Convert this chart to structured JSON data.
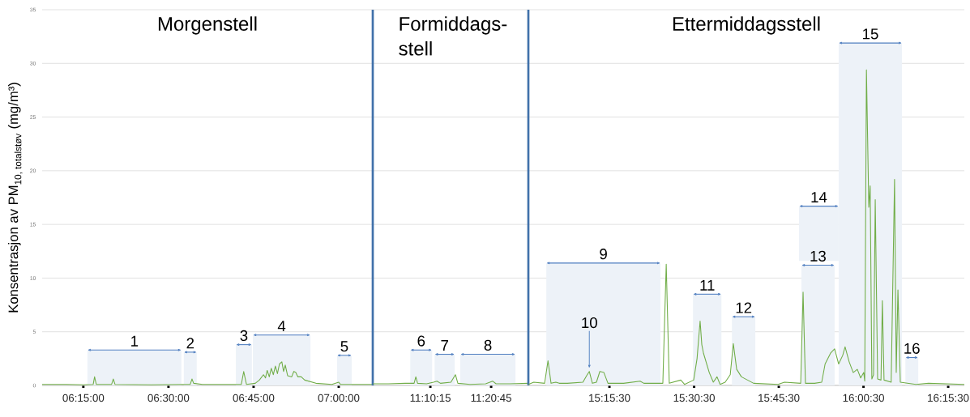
{
  "chart_data": [
    {
      "type": "line",
      "title": "Morgenstell",
      "ylabel": "\\text{Konsentrasjon av PM}_{\\text{10, totalstøv}}\\text{ (mg/m³)}",
      "grid": "y",
      "xlim": [
        6.129,
        7.1
      ],
      "ylim": [
        0,
        35
      ],
      "yticks": [
        0,
        5,
        10,
        15,
        20,
        25,
        30,
        35
      ],
      "xticks": [
        {
          "value": 6.25,
          "label": "06:15:00"
        },
        {
          "value": 6.5,
          "label": "06:30:00"
        },
        {
          "value": 6.75,
          "label": "06:45:00"
        },
        {
          "value": 7.0,
          "label": "07:00:00"
        }
      ],
      "series": [
        {
          "color": "#70ad47",
          "x": [
            6.129,
            6.2,
            6.25,
            6.279,
            6.283,
            6.288,
            6.333,
            6.338,
            6.343,
            6.45,
            6.54,
            6.564,
            6.569,
            6.574,
            6.6,
            6.714,
            6.721,
            6.729,
            6.755,
            6.767,
            6.779,
            6.785,
            6.79,
            6.796,
            6.802,
            6.808,
            6.814,
            6.82,
            6.826,
            6.833,
            6.838,
            6.843,
            6.85,
            6.862,
            6.868,
            6.874,
            6.88,
            6.89,
            6.9,
            6.933,
            6.98,
            7.0,
            7.005,
            7.05,
            7.1
          ],
          "values": [
            0.1,
            0.1,
            0.05,
            0.1,
            0.8,
            0.1,
            0.1,
            0.6,
            0.1,
            0.05,
            0.1,
            0.1,
            0.6,
            0.2,
            0.1,
            0.1,
            1.3,
            0.1,
            0.2,
            0.5,
            1.0,
            0.7,
            1.4,
            0.8,
            1.6,
            1.0,
            1.8,
            1.1,
            2.0,
            2.2,
            1.3,
            1.9,
            0.9,
            0.8,
            1.3,
            1.2,
            0.8,
            0.8,
            0.5,
            0.2,
            0.1,
            0.3,
            0.1,
            0.1,
            0.1
          ]
        }
      ],
      "bands": [
        {
          "axis": "x",
          "from": 6.262,
          "to": 6.538,
          "label": "1",
          "color": "#edf2f8"
        },
        {
          "axis": "x",
          "from": 6.545,
          "to": 6.583,
          "label": "2",
          "color": "#edf2f8"
        },
        {
          "axis": "x",
          "from": 6.698,
          "to": 6.745,
          "label": "3",
          "color": "#edf2f8"
        },
        {
          "axis": "x",
          "from": 6.748,
          "to": 6.917,
          "label": "4",
          "color": "#edf2f8"
        },
        {
          "axis": "x",
          "from": 6.995,
          "to": 7.038,
          "label": "5",
          "color": "#edf2f8"
        }
      ]
    },
    {
      "type": "line",
      "title": "Formiddags- stell",
      "grid": "y",
      "tick_labels": "x",
      "xlim": [
        11.005,
        11.453
      ],
      "ylim": [
        0,
        35
      ],
      "yticks": [
        0,
        5,
        10,
        15,
        20,
        25,
        30,
        35
      ],
      "xticks": [
        {
          "value": 11.170833,
          "label": "11:10:15"
        },
        {
          "value": 11.345833,
          "label": "11:20:45"
        }
      ],
      "series": [
        {
          "color": "#70ad47",
          "x": [
            11.005,
            11.05,
            11.098,
            11.124,
            11.129,
            11.134,
            11.16,
            11.18,
            11.19,
            11.2,
            11.23,
            11.243,
            11.25,
            11.285,
            11.33,
            11.35,
            11.36,
            11.4,
            11.453
          ],
          "values": [
            0.15,
            0.15,
            0.2,
            0.2,
            0.8,
            0.2,
            0.15,
            0.3,
            0.4,
            0.2,
            0.3,
            1.0,
            0.2,
            0.1,
            0.15,
            0.4,
            0.15,
            0.15,
            0.2
          ]
        }
      ],
      "bands": [
        {
          "axis": "x",
          "from": 11.113,
          "to": 11.176,
          "label": "6",
          "color": "#edf2f8"
        },
        {
          "axis": "x",
          "from": 11.183,
          "to": 11.241,
          "label": "7",
          "color": "#edf2f8"
        },
        {
          "axis": "x",
          "from": 11.257,
          "to": 11.416,
          "label": "8",
          "color": "#edf2f8"
        }
      ]
    },
    {
      "type": "line",
      "title": "Ettermiddagsstell",
      "grid": "y",
      "tick_labels": "x",
      "xlim": [
        15.019,
        16.306
      ],
      "ylim": [
        0,
        35
      ],
      "yticks": [
        0,
        5,
        10,
        15,
        20,
        25,
        30,
        35
      ],
      "xticks": [
        {
          "value": 15.258333,
          "label": "15:15:30"
        },
        {
          "value": 15.508333,
          "label": "15:30:30"
        },
        {
          "value": 15.758333,
          "label": "15:45:30"
        },
        {
          "value": 16.008333,
          "label": "16:00:30"
        },
        {
          "value": 16.258333,
          "label": "16:15:30"
        }
      ],
      "series": [
        {
          "color": "#70ad47",
          "x": [
            15.019,
            15.035,
            15.067,
            15.077,
            15.086,
            15.1,
            15.11,
            15.134,
            15.18,
            15.191,
            15.199,
            15.208,
            15.22,
            15.23,
            15.242,
            15.254,
            15.3,
            15.349,
            15.36,
            15.416,
            15.426,
            15.435,
            15.469,
            15.48,
            15.507,
            15.517,
            15.526,
            15.531,
            15.536,
            15.553,
            15.565,
            15.576,
            15.585,
            15.6,
            15.615,
            15.624,
            15.634,
            15.648,
            15.684,
            15.756,
            15.775,
            15.823,
            15.83,
            15.837,
            15.864,
            15.885,
            15.895,
            15.911,
            15.923,
            15.935,
            15.947,
            15.954,
            15.966,
            15.978,
            15.99,
            16.0,
            16.009,
            16.012,
            16.017,
            16.024,
            16.028,
            16.033,
            16.038,
            16.043,
            16.05,
            16.06,
            16.064,
            16.069,
            16.09,
            16.1,
            16.105,
            16.11,
            16.117,
            16.163,
            16.2,
            16.306
          ],
          "values": [
            0.1,
            0.3,
            0.2,
            2.3,
            0.2,
            0.3,
            0.2,
            0.2,
            0.3,
            0.9,
            1.3,
            0.2,
            0.3,
            1.3,
            1.2,
            0.2,
            0.2,
            0.4,
            0.2,
            0.2,
            11.3,
            0.2,
            0.5,
            0.1,
            0.5,
            2.5,
            6.0,
            3.8,
            3.0,
            1.2,
            0.3,
            0.8,
            0.1,
            0.3,
            1.0,
            3.9,
            1.5,
            0.8,
            0.2,
            0.1,
            0.3,
            0.2,
            8.7,
            0.2,
            0.2,
            0.3,
            2.0,
            3.0,
            3.4,
            2.0,
            2.8,
            3.6,
            2.2,
            1.2,
            1.5,
            0.7,
            1.2,
            0.4,
            29.4,
            16.6,
            18.6,
            0.6,
            1.0,
            17.3,
            0.6,
            0.5,
            7.9,
            0.5,
            0.3,
            19.2,
            1.2,
            8.9,
            0.3,
            0.1,
            0.2,
            0.1
          ]
        }
      ],
      "bands": [
        {
          "axis": "x",
          "from": 15.072,
          "to": 15.409,
          "label": "9",
          "color": "#edf2f8"
        },
        {
          "axis": "x",
          "from": 15.505,
          "to": 15.589,
          "label": "11",
          "color": "#edf2f8"
        },
        {
          "axis": "x",
          "from": 15.62,
          "to": 15.689,
          "label": "12",
          "color": "#edf2f8"
        },
        {
          "axis": "x",
          "from": 15.825,
          "to": 15.923,
          "label": "13",
          "color": "#edf2f8"
        },
        {
          "axis": "x",
          "from": 15.818,
          "to": 15.935,
          "label": "14",
          "color": "#edf2f8"
        },
        {
          "axis": "x",
          "from": 15.935,
          "to": 16.122,
          "label": "15",
          "color": "#edf2f8"
        },
        {
          "axis": "x",
          "from": 16.132,
          "to": 16.17,
          "label": "16",
          "color": "#edf2f8"
        }
      ],
      "annotations": [
        {
          "text": "10",
          "x": 15.199,
          "y": 1.3
        }
      ]
    }
  ]
}
